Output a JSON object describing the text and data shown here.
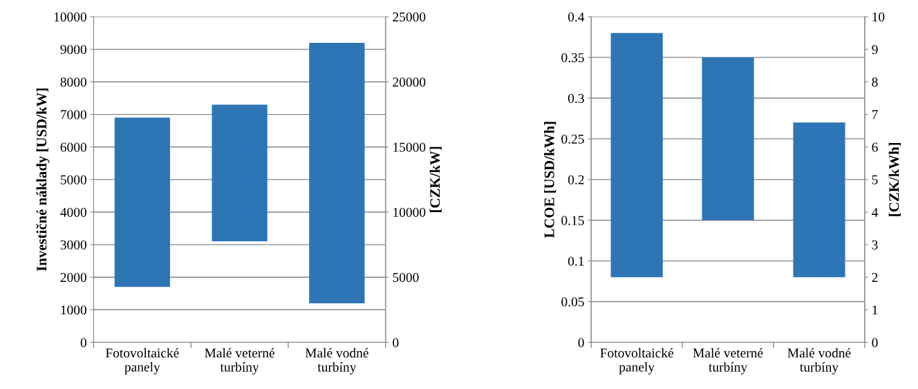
{
  "chart_data": [
    {
      "type": "bar",
      "ylabel": "Investičné náklady [USD/kW]",
      "y2label": "[CZK/kW]",
      "categories": [
        "Fotovoltaické\npanely",
        "Malé veterné\nturbíny",
        "Malé vodné\nturbíny"
      ],
      "values": [
        5200,
        4200,
        8000
      ],
      "base": [
        1700,
        3100,
        1200
      ],
      "color": "#2e75b6",
      "ylim": [
        0,
        10000
      ],
      "yticks": [
        0,
        1000,
        2000,
        3000,
        4000,
        5000,
        6000,
        7000,
        8000,
        9000,
        10000
      ],
      "y2lim": [
        0,
        25000
      ],
      "y2ticks": [
        0,
        5000,
        10000,
        15000,
        20000,
        25000
      ],
      "grid": "y"
    },
    {
      "type": "bar",
      "ylabel": "LCOE [USD/kWh]",
      "y2label": "[CZK/kWh]",
      "categories": [
        "Fotovoltaické\npanely",
        "Malé veterné\nturbíny",
        "Malé vodné\nturbíny"
      ],
      "values": [
        0.3,
        0.2,
        0.19
      ],
      "base": [
        0.08,
        0.15,
        0.08
      ],
      "color": "#2e75b6",
      "ylim": [
        0,
        0.4
      ],
      "yticks": [
        0,
        0.05,
        0.1,
        0.15,
        0.2,
        0.25,
        0.3,
        0.35,
        0.4
      ],
      "y2lim": [
        0,
        10
      ],
      "y2ticks": [
        0,
        1,
        2,
        3,
        4,
        5,
        6,
        7,
        8,
        9,
        10
      ],
      "grid": "y"
    }
  ]
}
